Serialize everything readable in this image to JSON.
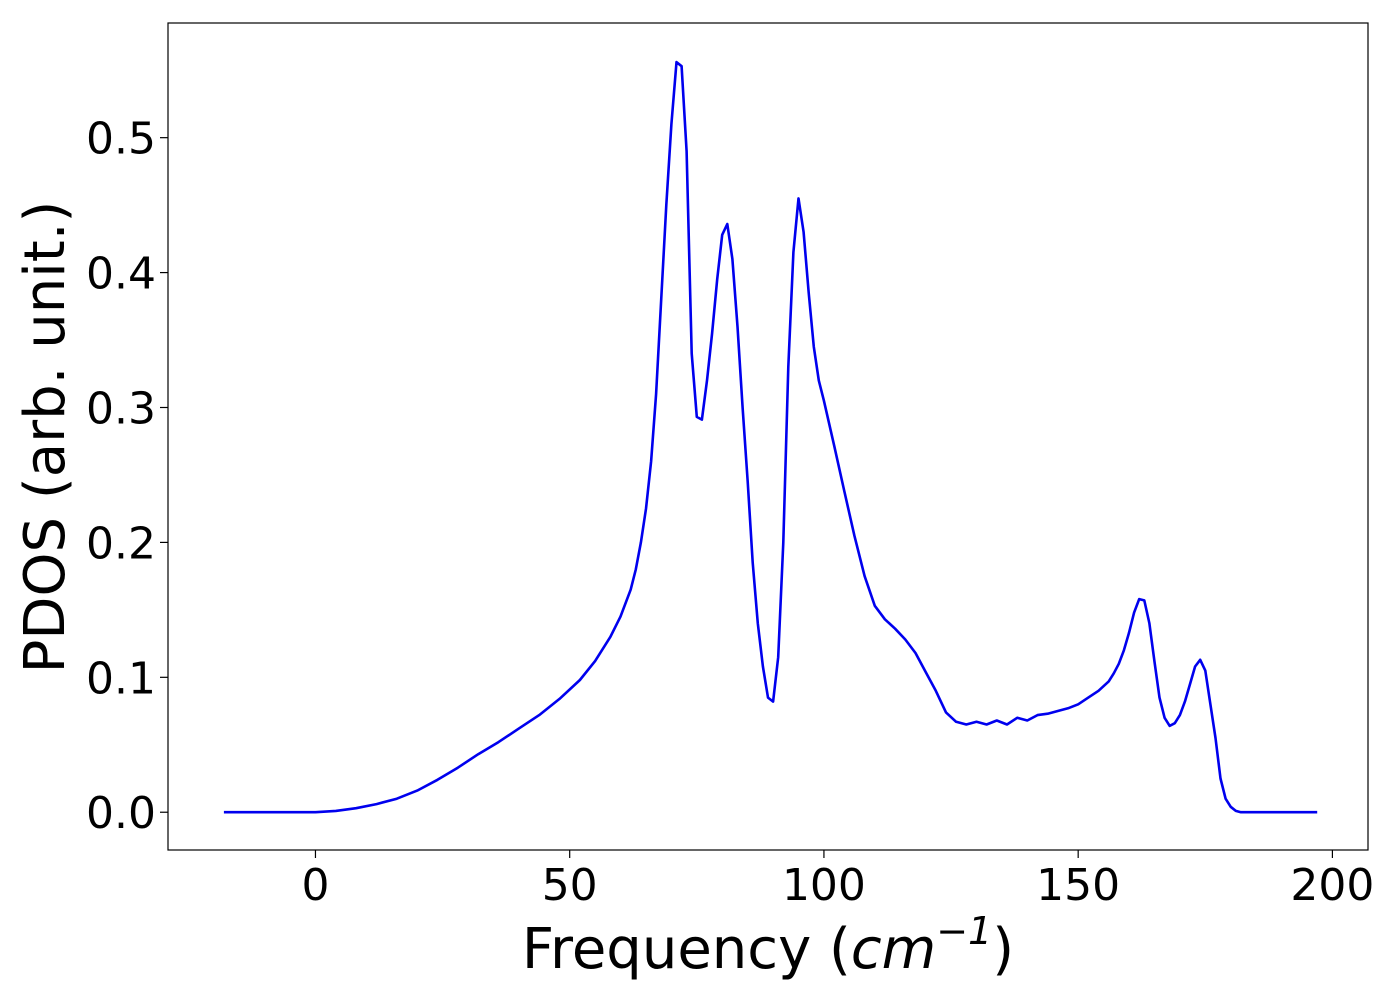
{
  "chart_data": {
    "type": "line",
    "title": "",
    "xlabel": "Frequency (cm⁻¹)",
    "xlabel_parts": {
      "prefix": "Frequency (",
      "unit_base": "cm",
      "unit_exp": "−1",
      "suffix": ")"
    },
    "ylabel": "PDOS (arb. unit.)",
    "xlim": [
      -29,
      207
    ],
    "ylim": [
      -0.028,
      0.585
    ],
    "xticks": [
      0,
      50,
      100,
      150,
      200
    ],
    "xtick_labels": [
      "0",
      "50",
      "100",
      "150",
      "200"
    ],
    "yticks": [
      0.0,
      0.1,
      0.2,
      0.3,
      0.4,
      0.5
    ],
    "ytick_labels": [
      "0.0",
      "0.1",
      "0.2",
      "0.3",
      "0.4",
      "0.5"
    ],
    "grid": false,
    "legend": "none",
    "series": [
      {
        "color": "#0000ee",
        "x": [
          -18,
          -10,
          0,
          4,
          8,
          12,
          16,
          20,
          24,
          28,
          32,
          36,
          40,
          44,
          48,
          52,
          55,
          58,
          60,
          62,
          63,
          64,
          65,
          66,
          67,
          68,
          69,
          70,
          71,
          72,
          73,
          74,
          75,
          76,
          77,
          78,
          79,
          80,
          81,
          82,
          83,
          84,
          85,
          86,
          87,
          88,
          89,
          90,
          91,
          92,
          93,
          94,
          95,
          96,
          97,
          98,
          99,
          100,
          102,
          104,
          106,
          108,
          110,
          112,
          114,
          116,
          118,
          120,
          122,
          124,
          126,
          128,
          130,
          132,
          134,
          136,
          138,
          140,
          142,
          144,
          146,
          148,
          150,
          152,
          154,
          156,
          157,
          158,
          159,
          160,
          161,
          162,
          163,
          164,
          165,
          166,
          167,
          168,
          169,
          170,
          171,
          172,
          173,
          174,
          175,
          176,
          177,
          178,
          179,
          180,
          181,
          182,
          183,
          184,
          186,
          190,
          197
        ],
        "y": [
          0.0,
          0.0,
          0.0,
          0.001,
          0.003,
          0.006,
          0.01,
          0.016,
          0.024,
          0.033,
          0.043,
          0.052,
          0.062,
          0.072,
          0.084,
          0.098,
          0.112,
          0.13,
          0.145,
          0.165,
          0.18,
          0.2,
          0.225,
          0.26,
          0.31,
          0.38,
          0.45,
          0.51,
          0.556,
          0.553,
          0.49,
          0.34,
          0.293,
          0.291,
          0.32,
          0.355,
          0.395,
          0.428,
          0.436,
          0.41,
          0.36,
          0.3,
          0.245,
          0.185,
          0.14,
          0.108,
          0.085,
          0.082,
          0.115,
          0.2,
          0.33,
          0.415,
          0.455,
          0.43,
          0.385,
          0.345,
          0.32,
          0.305,
          0.272,
          0.238,
          0.205,
          0.175,
          0.153,
          0.143,
          0.136,
          0.128,
          0.118,
          0.104,
          0.09,
          0.074,
          0.067,
          0.065,
          0.067,
          0.065,
          0.068,
          0.065,
          0.07,
          0.068,
          0.072,
          0.073,
          0.075,
          0.077,
          0.08,
          0.085,
          0.09,
          0.097,
          0.103,
          0.11,
          0.12,
          0.133,
          0.148,
          0.158,
          0.157,
          0.14,
          0.112,
          0.085,
          0.07,
          0.064,
          0.066,
          0.072,
          0.082,
          0.095,
          0.108,
          0.113,
          0.105,
          0.08,
          0.055,
          0.025,
          0.01,
          0.004,
          0.001,
          0.0,
          0.0,
          0.0,
          0.0,
          0.0,
          0.0
        ]
      }
    ]
  }
}
